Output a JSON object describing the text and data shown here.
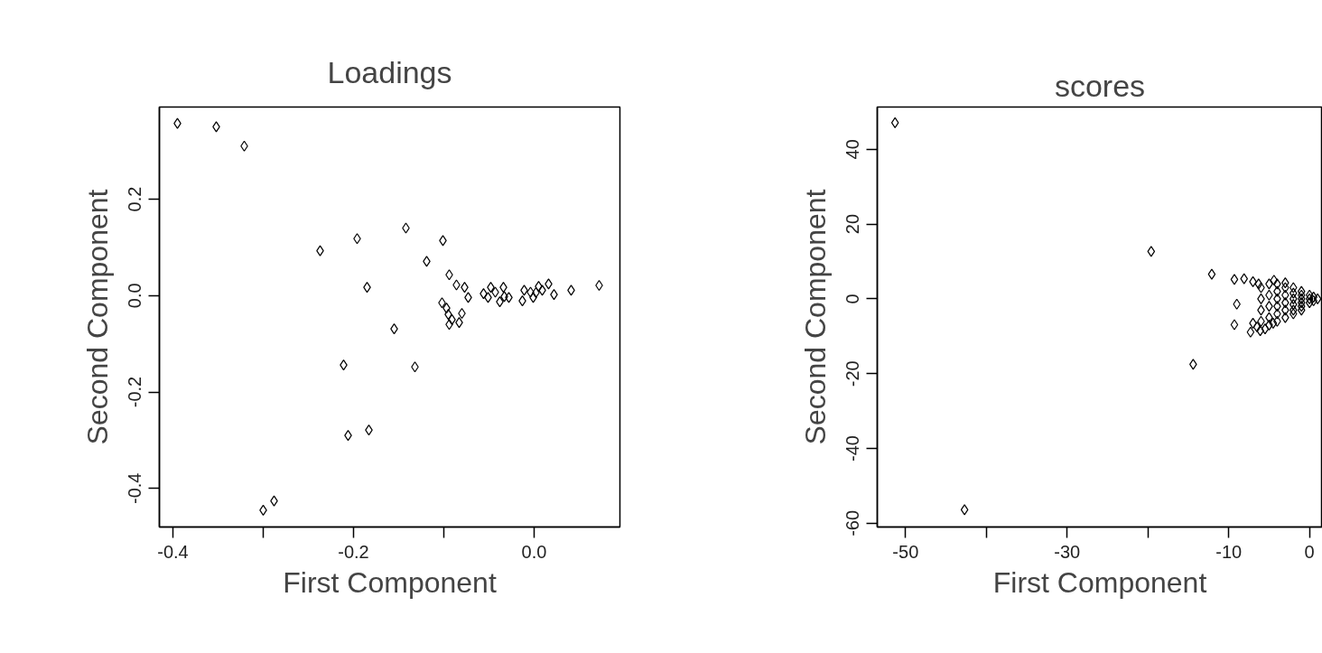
{
  "chart_data": [
    {
      "type": "scatter",
      "title": "Loadings",
      "xlabel": "First Component",
      "ylabel": "Second Component",
      "marker": "diamond",
      "grid": false,
      "xlim": [
        -0.415,
        0.095
      ],
      "ylim": [
        -0.48,
        0.391
      ],
      "xticks": [
        -0.4,
        {
          "value": -0.3,
          "label": null
        },
        -0.2,
        {
          "value": -0.1,
          "label": null
        },
        {
          "value": 0.0,
          "label": "0.0"
        }
      ],
      "yticks": [
        -0.4,
        -0.2,
        {
          "value": 0.0,
          "label": "0.0"
        },
        0.2
      ],
      "series": [
        {
          "color": "#000000",
          "x": [
            -0.395,
            -0.352,
            -0.321,
            -0.237,
            -0.196,
            -0.142,
            -0.101,
            -0.119,
            -0.185,
            -0.094,
            -0.086,
            -0.077,
            -0.073,
            -0.155,
            -0.211,
            -0.132,
            -0.206,
            -0.183,
            -0.3,
            -0.288,
            -0.102,
            -0.097,
            -0.095,
            -0.091,
            -0.094,
            -0.08,
            -0.083,
            -0.056,
            -0.048,
            -0.043,
            -0.034,
            -0.033,
            -0.038,
            -0.028,
            -0.051,
            -0.011,
            -0.004,
            0.002,
            0.009,
            0.016,
            0.022,
            -0.013,
            0.041,
            0.072,
            -0.001,
            0.005
          ],
          "values": [
            0.357,
            0.35,
            0.31,
            0.093,
            0.118,
            0.14,
            0.114,
            0.071,
            0.017,
            0.043,
            0.022,
            0.017,
            -0.004,
            -0.069,
            -0.144,
            -0.148,
            -0.29,
            -0.279,
            -0.445,
            -0.426,
            -0.015,
            -0.026,
            -0.039,
            -0.05,
            -0.06,
            -0.037,
            -0.056,
            0.004,
            0.017,
            0.007,
            0.017,
            -0.002,
            -0.013,
            -0.004,
            -0.004,
            0.011,
            0.007,
            0.006,
            0.011,
            0.024,
            0.002,
            -0.011,
            0.011,
            0.021,
            -0.004,
            0.019
          ]
        }
      ]
    },
    {
      "type": "scatter",
      "title": "scores",
      "xlabel": "First Component",
      "ylabel": "Second Component",
      "marker": "diamond",
      "grid": false,
      "xlim": [
        -53.5,
        1.6
      ],
      "ylim": [
        -61,
        51.3
      ],
      "xticks": [
        -50,
        {
          "value": -40,
          "label": null
        },
        -30,
        {
          "value": -20,
          "label": null
        },
        -10,
        0
      ],
      "yticks": [
        -60,
        -40,
        -20,
        0,
        20,
        40
      ],
      "series": [
        {
          "color": "#000000",
          "x": [
            -51.3,
            -42.7,
            -19.6,
            -12.1,
            -14.4,
            -9.0,
            -9.3,
            -7.3,
            -6.1,
            -9.3,
            -8.1,
            -7.0,
            -6.3,
            -4.4,
            -3.0,
            -6,
            -6,
            -6,
            -6,
            -5,
            -5,
            -5,
            -5,
            -5,
            -4,
            -4,
            -4,
            -4,
            -4,
            -4,
            -3,
            -3,
            -3,
            -3,
            -3,
            -2,
            -2,
            -2,
            -2,
            -2,
            -2,
            -1,
            -1,
            -1,
            -1,
            -1,
            -1,
            0,
            0,
            0,
            0.5,
            0.5,
            1,
            -7,
            -6.5,
            -5.5,
            -4.5
          ],
          "values": [
            47.1,
            -56.4,
            12.7,
            6.6,
            -17.5,
            -1.4,
            -6.9,
            -8.9,
            -8.5,
            5.2,
            5.4,
            4.6,
            4.0,
            5.0,
            4.3,
            3,
            0,
            -3,
            -6,
            4,
            1,
            -2,
            -5,
            -7,
            4,
            2,
            0,
            -2,
            -4,
            -6,
            3,
            1,
            -1,
            -3,
            -5,
            3,
            1.5,
            0,
            -1.5,
            -3,
            -4,
            2,
            1,
            0,
            -1,
            -2,
            -3,
            1,
            0,
            -1,
            0.5,
            -0.5,
            0,
            -6.5,
            -7.5,
            -8,
            -6.5
          ]
        }
      ]
    }
  ]
}
